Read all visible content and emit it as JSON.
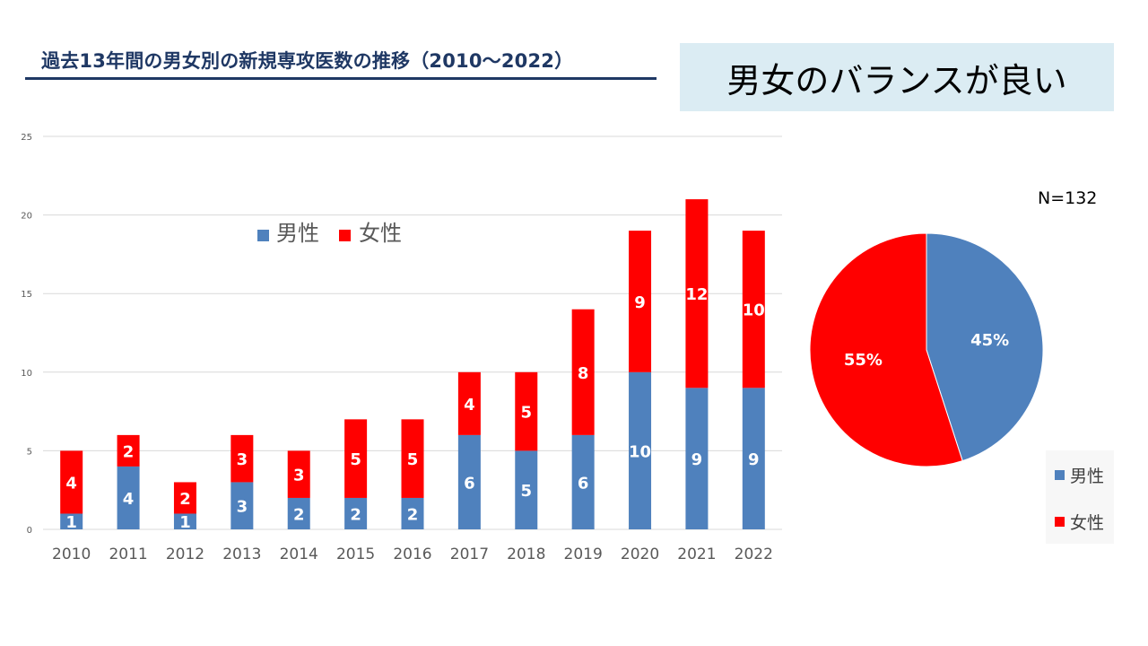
{
  "slide": {
    "title": "過去13年間の男女別の新規専攻医数の推移（2010～2022）",
    "callout": "男女のバランスが良い",
    "n_label": "N=132"
  },
  "colors": {
    "title": "#1F3864",
    "male": "#4F81BD",
    "female": "#FF0000",
    "callout_bg": "#DBECF3"
  },
  "chart_data": [
    {
      "type": "bar",
      "stacked": true,
      "categories": [
        "2010",
        "2011",
        "2012",
        "2013",
        "2014",
        "2015",
        "2016",
        "2017",
        "2018",
        "2019",
        "2020",
        "2021",
        "2022"
      ],
      "series": [
        {
          "name": "男性",
          "color": "#4F81BD",
          "values": [
            1,
            4,
            1,
            3,
            2,
            2,
            2,
            6,
            5,
            6,
            10,
            9,
            9
          ]
        },
        {
          "name": "女性",
          "color": "#FF0000",
          "values": [
            4,
            2,
            2,
            3,
            3,
            5,
            5,
            4,
            5,
            8,
            9,
            12,
            10
          ]
        }
      ],
      "ylim": [
        0,
        25
      ],
      "yticks": [
        0,
        5,
        10,
        15,
        20,
        25
      ],
      "legend": "top-left-inside",
      "grid": true,
      "title": "",
      "xlabel": "",
      "ylabel": ""
    },
    {
      "type": "pie",
      "labels": [
        "男性",
        "女性"
      ],
      "values": [
        45,
        55
      ],
      "value_labels": [
        "45%",
        "55%"
      ],
      "colors": [
        "#4F81BD",
        "#FF0000"
      ],
      "legend": "bottom-right"
    }
  ]
}
